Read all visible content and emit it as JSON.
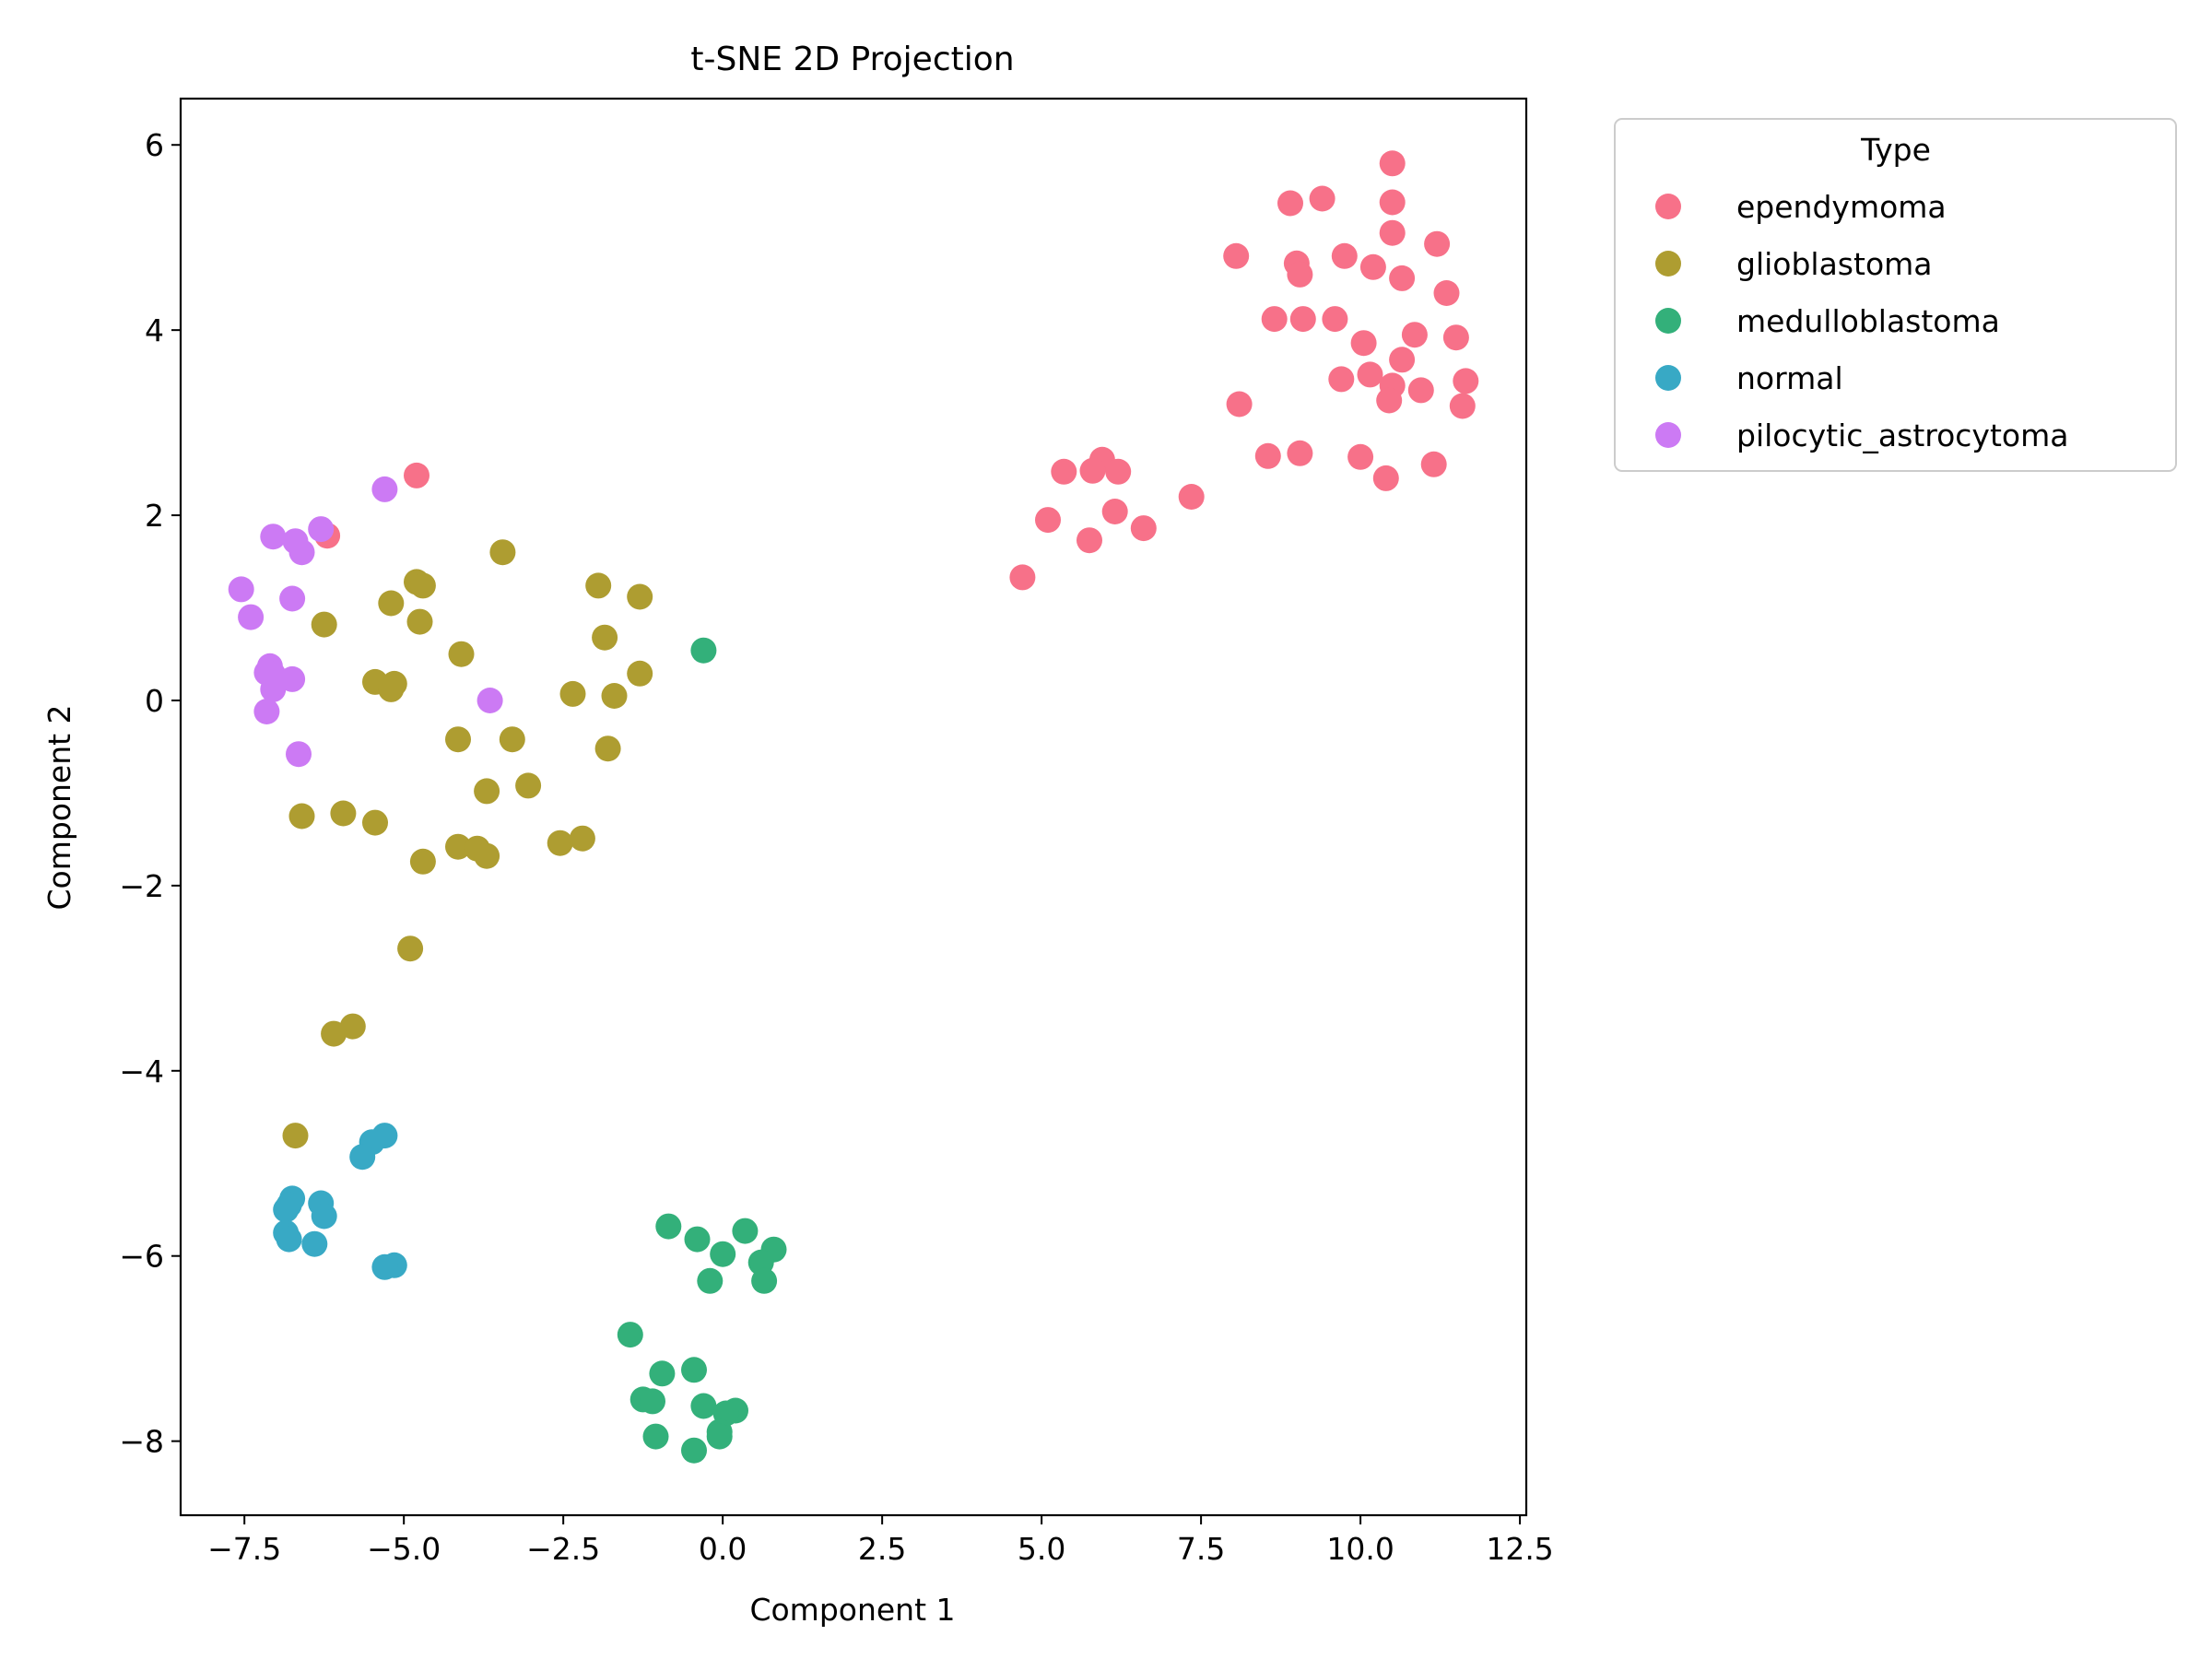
{
  "chart_data": {
    "type": "scatter",
    "title": "t-SNE 2D Projection",
    "xlabel": "Component 1",
    "ylabel": "Component 2",
    "xlim": [
      -8.5,
      12.6
    ],
    "ylim": [
      -8.8,
      6.5
    ],
    "xticks": [
      -7.5,
      -5.0,
      -2.5,
      0.0,
      2.5,
      5.0,
      7.5,
      10.0,
      12.5
    ],
    "xtick_labels": [
      "−7.5",
      "−5.0",
      "−2.5",
      "0.0",
      "2.5",
      "5.0",
      "7.5",
      "10.0",
      "12.5"
    ],
    "yticks": [
      6,
      4,
      2,
      0,
      -2,
      -4,
      -6,
      -8
    ],
    "ytick_labels": [
      "6",
      "4",
      "2",
      "0",
      "−2",
      "−4",
      "−6",
      "−8"
    ],
    "grid": false,
    "legend": {
      "title": "Type",
      "placement": "outside-top-right"
    },
    "series": [
      {
        "name": "ependymoma",
        "color": "#f77189",
        "points": [
          [
            10.5,
            5.8
          ],
          [
            9.4,
            5.42
          ],
          [
            8.9,
            5.37
          ],
          [
            10.5,
            5.38
          ],
          [
            10.5,
            5.05
          ],
          [
            11.2,
            4.93
          ],
          [
            8.05,
            4.8
          ],
          [
            9.0,
            4.72
          ],
          [
            9.75,
            4.8
          ],
          [
            9.05,
            4.6
          ],
          [
            10.2,
            4.68
          ],
          [
            10.65,
            4.56
          ],
          [
            11.35,
            4.4
          ],
          [
            8.65,
            4.12
          ],
          [
            9.1,
            4.12
          ],
          [
            9.6,
            4.12
          ],
          [
            10.05,
            3.86
          ],
          [
            10.85,
            3.95
          ],
          [
            11.5,
            3.92
          ],
          [
            10.65,
            3.68
          ],
          [
            9.7,
            3.47
          ],
          [
            10.15,
            3.52
          ],
          [
            10.5,
            3.4
          ],
          [
            10.45,
            3.24
          ],
          [
            10.95,
            3.35
          ],
          [
            11.65,
            3.45
          ],
          [
            8.1,
            3.2
          ],
          [
            11.6,
            3.18
          ],
          [
            8.55,
            2.64
          ],
          [
            9.05,
            2.67
          ],
          [
            10.0,
            2.63
          ],
          [
            11.15,
            2.55
          ],
          [
            10.4,
            2.4
          ],
          [
            5.35,
            2.47
          ],
          [
            5.95,
            2.6
          ],
          [
            5.8,
            2.48
          ],
          [
            6.2,
            2.47
          ],
          [
            7.35,
            2.2
          ],
          [
            6.15,
            2.04
          ],
          [
            5.1,
            1.95
          ],
          [
            6.6,
            1.86
          ],
          [
            5.75,
            1.73
          ],
          [
            4.7,
            1.33
          ],
          [
            -4.8,
            2.43
          ],
          [
            -6.2,
            1.78
          ]
        ]
      },
      {
        "name": "glioblastoma",
        "color": "#ae9d31",
        "points": [
          [
            -3.45,
            1.6
          ],
          [
            -4.8,
            1.28
          ],
          [
            -4.7,
            1.24
          ],
          [
            -1.95,
            1.24
          ],
          [
            -1.3,
            1.12
          ],
          [
            -5.2,
            1.05
          ],
          [
            -6.25,
            0.82
          ],
          [
            -4.75,
            0.85
          ],
          [
            -1.85,
            0.68
          ],
          [
            -4.1,
            0.5
          ],
          [
            -1.3,
            0.29
          ],
          [
            -5.45,
            0.2
          ],
          [
            -5.15,
            0.18
          ],
          [
            -5.2,
            0.12
          ],
          [
            -2.35,
            0.07
          ],
          [
            -1.7,
            0.05
          ],
          [
            -4.15,
            -0.42
          ],
          [
            -3.3,
            -0.42
          ],
          [
            -1.8,
            -0.52
          ],
          [
            -3.7,
            -0.98
          ],
          [
            -3.05,
            -0.92
          ],
          [
            -5.95,
            -1.22
          ],
          [
            -6.6,
            -1.25
          ],
          [
            -5.45,
            -1.32
          ],
          [
            -2.55,
            -1.54
          ],
          [
            -2.2,
            -1.49
          ],
          [
            -4.15,
            -1.58
          ],
          [
            -3.85,
            -1.6
          ],
          [
            -3.7,
            -1.68
          ],
          [
            -4.7,
            -1.74
          ],
          [
            -4.9,
            -2.68
          ],
          [
            -5.8,
            -3.52
          ],
          [
            -6.1,
            -3.6
          ],
          [
            -6.7,
            -4.7
          ]
        ]
      },
      {
        "name": "medulloblastoma",
        "color": "#33b07a",
        "points": [
          [
            -0.3,
            0.54
          ],
          [
            -0.85,
            -5.68
          ],
          [
            -0.4,
            -5.82
          ],
          [
            0.35,
            -5.73
          ],
          [
            0.8,
            -5.93
          ],
          [
            0.0,
            -5.98
          ],
          [
            0.6,
            -6.07
          ],
          [
            -0.2,
            -6.27
          ],
          [
            0.65,
            -6.27
          ],
          [
            -1.45,
            -6.85
          ],
          [
            -0.95,
            -7.27
          ],
          [
            -0.45,
            -7.23
          ],
          [
            -1.25,
            -7.55
          ],
          [
            -1.1,
            -7.57
          ],
          [
            -0.3,
            -7.62
          ],
          [
            0.2,
            -7.67
          ],
          [
            0.05,
            -7.7
          ],
          [
            -0.05,
            -7.9
          ],
          [
            -1.05,
            -7.95
          ],
          [
            -0.05,
            -7.95
          ],
          [
            -0.45,
            -8.1
          ]
        ]
      },
      {
        "name": "normal",
        "color": "#38a9c5",
        "points": [
          [
            -5.3,
            -4.7
          ],
          [
            -5.5,
            -4.77
          ],
          [
            -5.65,
            -4.93
          ],
          [
            -6.75,
            -5.38
          ],
          [
            -6.3,
            -5.43
          ],
          [
            -6.8,
            -5.45
          ],
          [
            -6.85,
            -5.5
          ],
          [
            -6.25,
            -5.57
          ],
          [
            -6.85,
            -5.75
          ],
          [
            -6.8,
            -5.82
          ],
          [
            -6.4,
            -5.87
          ],
          [
            -5.15,
            -6.1
          ],
          [
            -5.3,
            -6.12
          ]
        ]
      },
      {
        "name": "pilocytic_astrocytoma",
        "color": "#cc7af4",
        "points": [
          [
            -5.3,
            2.28
          ],
          [
            -6.3,
            1.85
          ],
          [
            -7.05,
            1.77
          ],
          [
            -6.7,
            1.72
          ],
          [
            -6.6,
            1.6
          ],
          [
            -7.55,
            1.2
          ],
          [
            -6.75,
            1.1
          ],
          [
            -7.4,
            0.9
          ],
          [
            -7.1,
            0.37
          ],
          [
            -7.15,
            0.3
          ],
          [
            -7.05,
            0.28
          ],
          [
            -6.75,
            0.23
          ],
          [
            -7.05,
            0.12
          ],
          [
            -7.15,
            -0.12
          ],
          [
            -3.65,
            0.0
          ],
          [
            -6.65,
            -0.58
          ]
        ]
      }
    ]
  }
}
